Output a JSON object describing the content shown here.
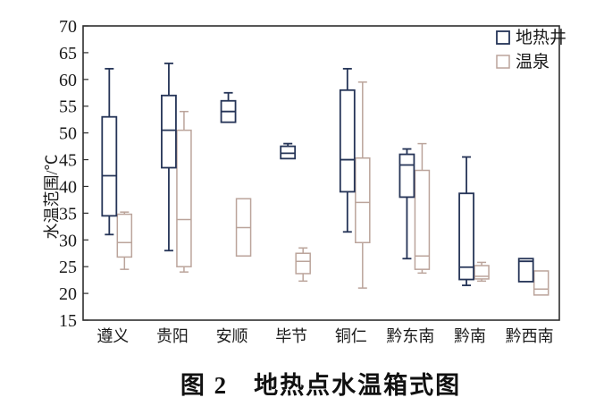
{
  "figure": {
    "caption": "图 2　地热点水温箱式图"
  },
  "colors": {
    "frame": "#2e2e2e",
    "text": "#1a1a1a",
    "geothermal_well": "#253457",
    "hot_spring": "#bba49b"
  },
  "chart_data": {
    "type": "boxplot",
    "title": "",
    "xlabel": "",
    "ylabel": "水温范围/℃",
    "ylim": [
      15,
      70
    ],
    "yticks": [
      70,
      65,
      60,
      55,
      50,
      45,
      40,
      35,
      30,
      25,
      20,
      15
    ],
    "grid": false,
    "legend_position": "top-right-inside",
    "categories": [
      "遵义",
      "贵阳",
      "安顺",
      "毕节",
      "铜仁",
      "黔东南",
      "黔南",
      "黔西南"
    ],
    "series": [
      {
        "name": "地热井",
        "color": "#253457",
        "boxes": [
          {
            "category": "遵义",
            "whisker_high": 62,
            "q3": 53,
            "median": 42,
            "q1": 34.5,
            "whisker_low": 31
          },
          {
            "category": "贵阳",
            "whisker_high": 63,
            "q3": 57,
            "median": 50.5,
            "q1": 43.5,
            "whisker_low": 28
          },
          {
            "category": "安顺",
            "whisker_high": 57.5,
            "q3": 56,
            "median": 54,
            "q1": 52,
            "whisker_low": null
          },
          {
            "category": "毕节",
            "whisker_high": 48,
            "q3": 47.5,
            "median": 46.2,
            "q1": 45.2,
            "whisker_low": null
          },
          {
            "category": "铜仁",
            "whisker_high": 62,
            "q3": 58,
            "median": 45,
            "q1": 39,
            "whisker_low": 31.5
          },
          {
            "category": "黔东南",
            "whisker_high": 47,
            "q3": 46,
            "median": 44,
            "q1": 38,
            "whisker_low": 26.5
          },
          {
            "category": "黔南",
            "whisker_high": 45.5,
            "q3": 38.7,
            "median": 24.9,
            "q1": 22.6,
            "whisker_low": 21.5
          },
          {
            "category": "黔西南",
            "whisker_high": null,
            "q3": 26.5,
            "median": 26,
            "q1": 22.2,
            "whisker_low": null
          }
        ]
      },
      {
        "name": "温泉",
        "color": "#bba49b",
        "boxes": [
          {
            "category": "遵义",
            "whisker_high": 35.2,
            "q3": 34.8,
            "median": 29.5,
            "q1": 26.8,
            "whisker_low": 24.5
          },
          {
            "category": "贵阳",
            "whisker_high": 54,
            "q3": 50.5,
            "median": 33.8,
            "q1": 25,
            "whisker_low": 24
          },
          {
            "category": "安顺",
            "whisker_high": null,
            "q3": 37.7,
            "median": 32.3,
            "q1": 27,
            "whisker_low": null
          },
          {
            "category": "毕节",
            "whisker_high": 28.5,
            "q3": 27.5,
            "median": 26,
            "q1": 23.7,
            "whisker_low": 22.3
          },
          {
            "category": "铜仁",
            "whisker_high": 59.5,
            "q3": 45.3,
            "median": 37,
            "q1": 29.5,
            "whisker_low": 21
          },
          {
            "category": "黔东南",
            "whisker_high": 48,
            "q3": 43,
            "median": 27,
            "q1": 24.5,
            "whisker_low": 23.8
          },
          {
            "category": "黔南",
            "whisker_high": 25.8,
            "q3": 25.2,
            "median": 23.2,
            "q1": 22.7,
            "whisker_low": 22.3
          },
          {
            "category": "黔西南",
            "whisker_high": null,
            "q3": 24.2,
            "median": 20.8,
            "q1": 19.7,
            "whisker_low": null
          }
        ]
      }
    ]
  }
}
